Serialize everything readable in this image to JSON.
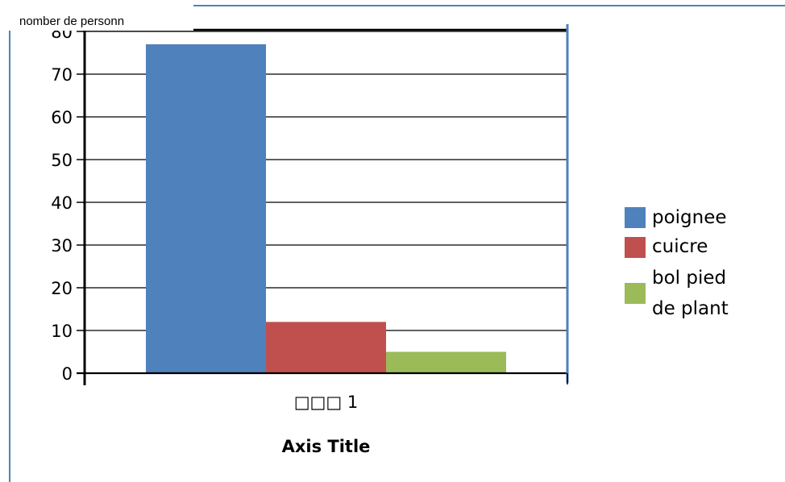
{
  "chart_data": {
    "type": "bar",
    "ylabel": "nomber de personn",
    "xlabel": "Axis Title",
    "categories": [
      "□□□ 1"
    ],
    "ylim": [
      0,
      80
    ],
    "yticks": [
      0,
      10,
      20,
      30,
      40,
      50,
      60,
      70,
      80
    ],
    "grid": true,
    "legend_position": "right",
    "series": [
      {
        "name": "poignee",
        "values": [
          77
        ],
        "color": "#4f81bd"
      },
      {
        "name": "cuicre",
        "values": [
          12
        ],
        "color": "#c0504d"
      },
      {
        "name": "bol pied de plant",
        "values": [
          5
        ],
        "color": "#9bbb59"
      }
    ]
  }
}
